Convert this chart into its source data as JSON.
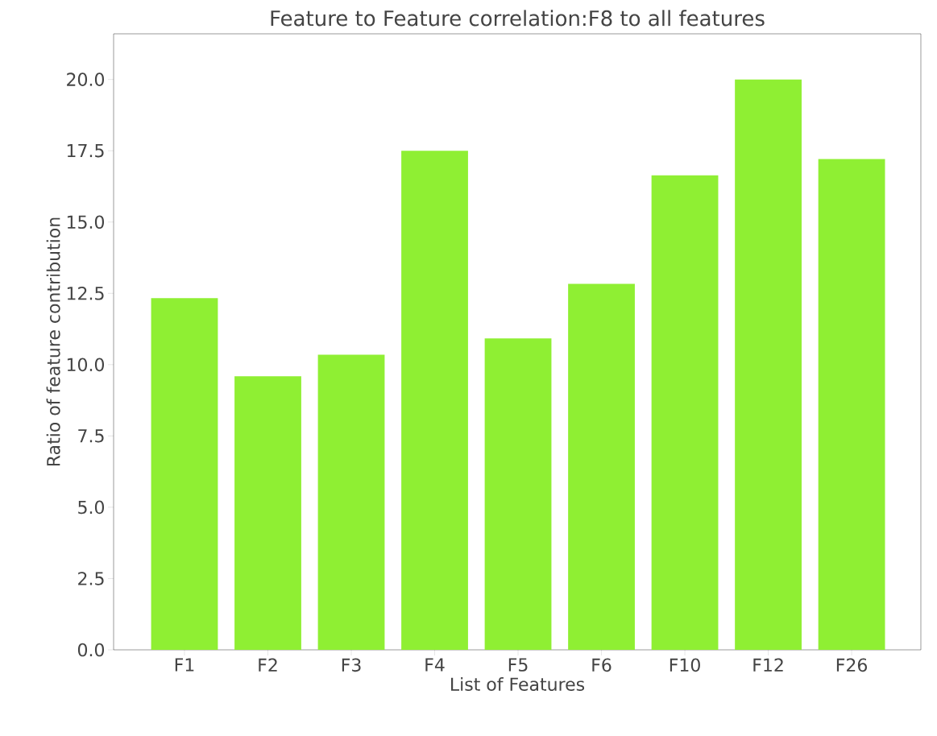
{
  "chart_data": {
    "type": "bar",
    "title": "Feature to Feature correlation:F8 to all features",
    "xlabel": "List of Features",
    "ylabel": "Ratio of feature contribution",
    "categories": [
      "F1",
      "F2",
      "F3",
      "F4",
      "F5",
      "F6",
      "F10",
      "F12",
      "F26"
    ],
    "values": [
      12.33,
      9.59,
      10.35,
      17.5,
      10.92,
      12.83,
      16.64,
      20.0,
      17.21
    ],
    "color": "#8fef33",
    "ylim": [
      0,
      21.6
    ],
    "yticks": [
      {
        "value": 0,
        "label": "0.0"
      },
      {
        "value": 2.5,
        "label": "2.5"
      },
      {
        "value": 5,
        "label": "5.0"
      },
      {
        "value": 7.5,
        "label": "7.5"
      },
      {
        "value": 10,
        "label": "10.0"
      },
      {
        "value": 12.5,
        "label": "12.5"
      },
      {
        "value": 15,
        "label": "15.0"
      },
      {
        "value": 17.5,
        "label": "17.5"
      },
      {
        "value": 20,
        "label": "20.0"
      }
    ]
  }
}
